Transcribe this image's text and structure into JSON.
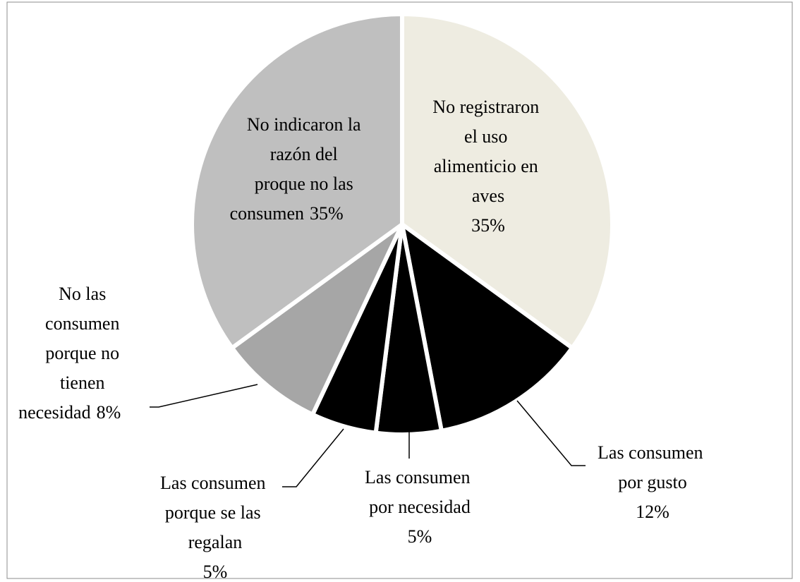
{
  "chart_data": {
    "type": "pie",
    "categories": [
      "No registraron el uso alimenticio en aves",
      "Las consumen por gusto",
      "Las consumen por necesidad",
      "Las consumen porque se las regalan",
      "No las consumen porque no tienen necesidad",
      "No indicaron la razón del proque no las consumen"
    ],
    "values": [
      35,
      12,
      5,
      5,
      8,
      35
    ],
    "value_labels": [
      "35%",
      "12%",
      "5%",
      "5%",
      "8%",
      "35%"
    ],
    "colors": [
      "#eeece1",
      "#000000",
      "#000000",
      "#000000",
      "#a6a6a6",
      "#bfbfbf"
    ]
  }
}
